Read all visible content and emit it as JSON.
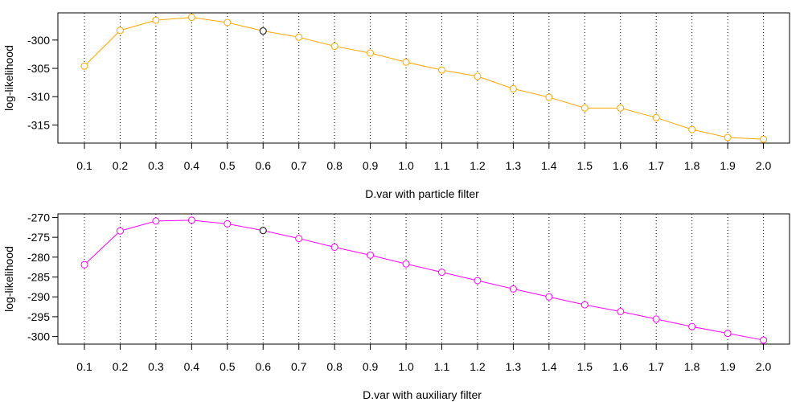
{
  "chart_data": [
    {
      "type": "line",
      "xlabel": "D.var with particle filter",
      "ylabel": "log-likelihood",
      "x": [
        0.1,
        0.2,
        0.3,
        0.4,
        0.5,
        0.6,
        0.7,
        0.8,
        0.9,
        1.0,
        1.1,
        1.2,
        1.3,
        1.4,
        1.5,
        1.6,
        1.7,
        1.8,
        1.9,
        2.0
      ],
      "x_tick_labels": [
        "0.1",
        "0.2",
        "0.3",
        "0.4",
        "0.5",
        "0.6",
        "0.7",
        "0.8",
        "0.9",
        "1.0",
        "1.1",
        "1.2",
        "1.3",
        "1.4",
        "1.5",
        "1.6",
        "1.7",
        "1.8",
        "1.9",
        "2.0"
      ],
      "y_ticks": [
        -300,
        -305,
        -310,
        -315
      ],
      "y_tick_labels": [
        "-300",
        "-305",
        "-310",
        "-315"
      ],
      "ylim": [
        -318.2,
        -295.2
      ],
      "series": [
        {
          "values": [
            -304.6,
            -298.3,
            -296.5,
            -296.0,
            -296.9,
            -298.4,
            -299.5,
            -301.1,
            -302.3,
            -303.9,
            -305.3,
            -306.4,
            -308.6,
            -310.1,
            -312.0,
            -312.0,
            -313.7,
            -315.8,
            -317.2,
            -317.5
          ]
        }
      ],
      "highlight_index": 5,
      "highlight_color": "#000000",
      "series_color": "#FFA500",
      "grid": "vertical dotted at each x"
    },
    {
      "type": "line",
      "xlabel": "D.var with auxiliary filter",
      "ylabel": "log-likelihood",
      "x": [
        0.1,
        0.2,
        0.3,
        0.4,
        0.5,
        0.6,
        0.7,
        0.8,
        0.9,
        1.0,
        1.1,
        1.2,
        1.3,
        1.4,
        1.5,
        1.6,
        1.7,
        1.8,
        1.9,
        2.0
      ],
      "x_tick_labels": [
        "0.1",
        "0.2",
        "0.3",
        "0.4",
        "0.5",
        "0.6",
        "0.7",
        "0.8",
        "0.9",
        "1.0",
        "1.1",
        "1.2",
        "1.3",
        "1.4",
        "1.5",
        "1.6",
        "1.7",
        "1.8",
        "1.9",
        "2.0"
      ],
      "y_ticks": [
        -270,
        -275,
        -280,
        -285,
        -290,
        -295,
        -300
      ],
      "y_tick_labels": [
        "-270",
        "-275",
        "-280",
        "-285",
        "-290",
        "-295",
        "-300"
      ],
      "ylim": [
        -301.9,
        -269.1
      ],
      "series": [
        {
          "values": [
            -281.9,
            -273.4,
            -270.9,
            -270.7,
            -271.6,
            -273.3,
            -275.3,
            -277.5,
            -279.5,
            -281.7,
            -283.8,
            -285.9,
            -288.0,
            -290.0,
            -292.0,
            -293.7,
            -295.6,
            -297.5,
            -299.2,
            -300.9
          ]
        }
      ],
      "highlight_index": 5,
      "highlight_color": "#000000",
      "series_color": "#FF00FF",
      "grid": "vertical dotted at each x"
    }
  ]
}
